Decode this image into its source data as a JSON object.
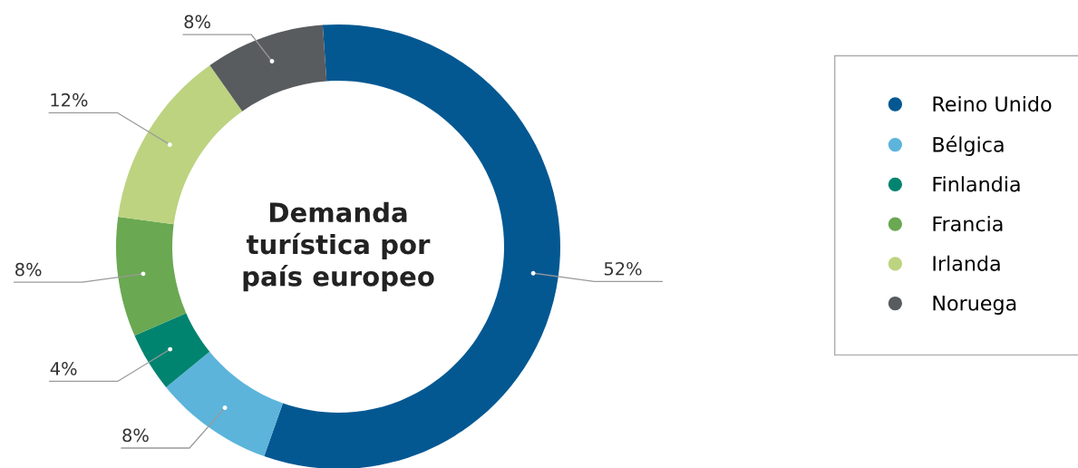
{
  "chart_data": {
    "type": "donut",
    "title": "Demanda\nturística por\npaís europeo",
    "categories": [
      "Reino Unido",
      "Bélgica",
      "Finlandia",
      "Francia",
      "Irlanda",
      "Noruega"
    ],
    "values": [
      52,
      8,
      4,
      8,
      12,
      8
    ],
    "value_labels": [
      "52%",
      "8%",
      "4%",
      "8%",
      "12%",
      "8%"
    ],
    "colors": [
      "#035892",
      "#5cb4db",
      "#00846f",
      "#6aa852",
      "#bdd380",
      "#595c5f"
    ],
    "legend": "right"
  }
}
